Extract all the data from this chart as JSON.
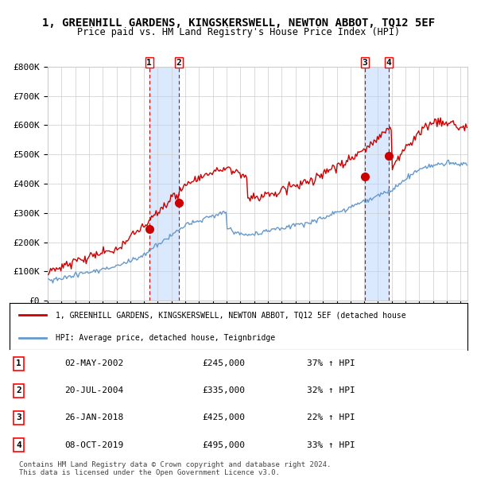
{
  "title": "1, GREENHILL GARDENS, KINGSKERSWELL, NEWTON ABBOT, TQ12 5EF",
  "subtitle": "Price paid vs. HM Land Registry's House Price Index (HPI)",
  "xlabel": "",
  "ylabel": "",
  "ylim": [
    0,
    800000
  ],
  "yticks": [
    0,
    100000,
    200000,
    300000,
    400000,
    500000,
    600000,
    700000,
    800000
  ],
  "ytick_labels": [
    "£0",
    "£100K",
    "£200K",
    "£300K",
    "£400K",
    "£500K",
    "£600K",
    "£700K",
    "£800K"
  ],
  "xstart_year": 1995,
  "xend_year": 2025,
  "transactions": [
    {
      "num": 1,
      "date": "2002-05-02",
      "price": 245000,
      "label": "02-MAY-2002",
      "hpi_pct": "37% ↑ HPI"
    },
    {
      "num": 2,
      "date": "2004-07-20",
      "price": 335000,
      "label": "20-JUL-2004",
      "hpi_pct": "32% ↑ HPI"
    },
    {
      "num": 3,
      "date": "2018-01-26",
      "price": 425000,
      "label": "26-JAN-2018",
      "hpi_pct": "22% ↑ HPI"
    },
    {
      "num": 4,
      "date": "2019-10-08",
      "price": 495000,
      "label": "08-OCT-2019",
      "hpi_pct": "33% ↑ HPI"
    }
  ],
  "red_line_color": "#cc0000",
  "blue_line_color": "#6699cc",
  "shade_color": "#cce0ff",
  "dot_color": "#cc0000",
  "grid_color": "#cccccc",
  "bg_color": "#ffffff",
  "title_fontsize": 11,
  "subtitle_fontsize": 9,
  "legend_line1": "1, GREENHILL GARDENS, KINGSKERSWELL, NEWTON ABBOT, TQ12 5EF (detached house",
  "legend_line2": "HPI: Average price, detached house, Teignbridge",
  "footer": "Contains HM Land Registry data © Crown copyright and database right 2024.\nThis data is licensed under the Open Government Licence v3.0."
}
